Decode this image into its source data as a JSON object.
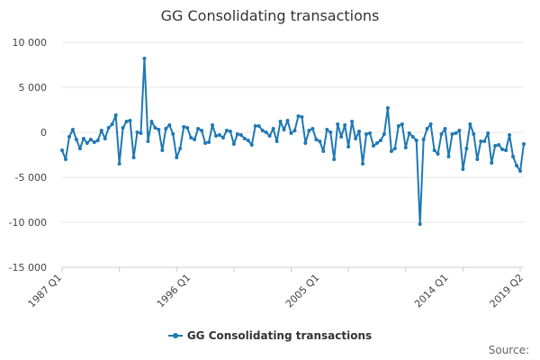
{
  "header": {
    "title": "GG Consolidating transactions"
  },
  "legend": {
    "label": "GG Consolidating transactions",
    "color": "#1f78b4"
  },
  "footer": {
    "source": "Source:"
  },
  "chart_data": {
    "type": "line",
    "title": "GG Consolidating transactions",
    "xlabel": "",
    "ylabel": "",
    "ylim": [
      -15000,
      10000
    ],
    "yticks": [
      10000,
      5000,
      0,
      -5000,
      -10000,
      -15000
    ],
    "ytick_labels": [
      "10 000",
      "5 000",
      "0",
      "-5 000",
      "-10 000",
      "-15 000"
    ],
    "xtick_labels": [
      "1987 Q1",
      "1996 Q1",
      "2005 Q1",
      "2014 Q1",
      "2019 Q2"
    ],
    "xtick_indices": [
      0,
      36,
      72,
      108,
      129
    ],
    "grid": "horizontal",
    "legend_position": "bottom",
    "series": [
      {
        "name": "GG Consolidating transactions",
        "color": "#1f78b4",
        "values": [
          -2000,
          -3000,
          -500,
          300,
          -800,
          -1800,
          -700,
          -1200,
          -800,
          -1100,
          -900,
          200,
          -700,
          500,
          900,
          1900,
          -3500,
          500,
          1200,
          1300,
          -2800,
          0,
          -100,
          8200,
          -1000,
          1200,
          500,
          300,
          -2000,
          400,
          800,
          -200,
          -2800,
          -1800,
          600,
          500,
          -600,
          -800,
          400,
          200,
          -1200,
          -1100,
          800,
          -400,
          -300,
          -600,
          200,
          100,
          -1300,
          -200,
          -300,
          -700,
          -900,
          -1400,
          700,
          700,
          200,
          0,
          -400,
          400,
          -1000,
          1200,
          300,
          1300,
          -100,
          200,
          1800,
          1700,
          -1200,
          200,
          400,
          -800,
          -1000,
          -2100,
          300,
          0,
          -3000,
          900,
          -500,
          800,
          -1600,
          1200,
          -700,
          100,
          -3500,
          -200,
          -100,
          -1500,
          -1200,
          -900,
          -200,
          2700,
          -2100,
          -1800,
          700,
          900,
          -1700,
          -100,
          -500,
          -900,
          -10200,
          -800,
          400,
          900,
          -2000,
          -2400,
          -200,
          400,
          -2700,
          -200,
          -100,
          200,
          -4100,
          -1800,
          900,
          -200,
          -3000,
          -1000,
          -1000,
          -100,
          -3400,
          -1500,
          -1400,
          -1900,
          -2000,
          -300,
          -2700,
          -3700,
          -4300,
          -1300
        ]
      }
    ]
  }
}
